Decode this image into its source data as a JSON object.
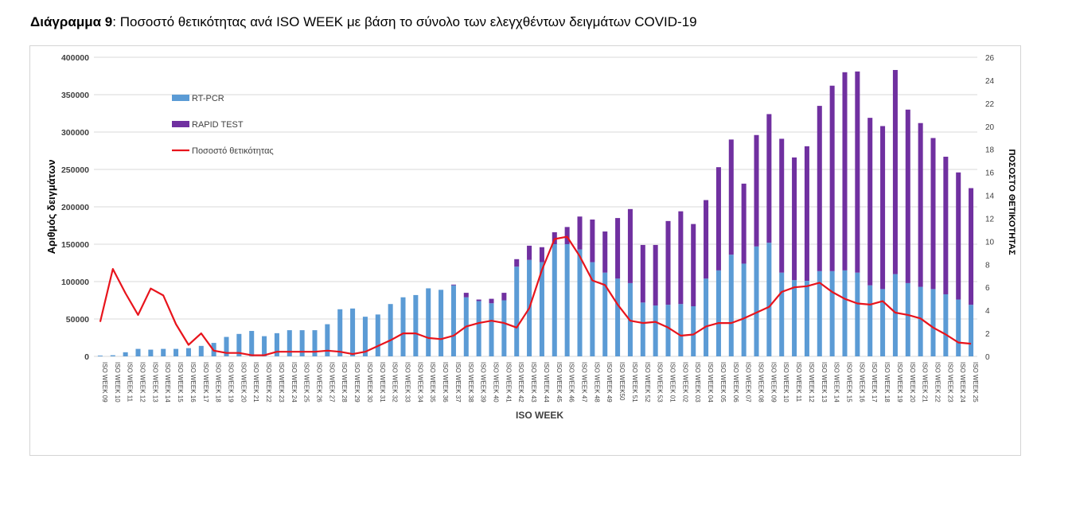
{
  "heading": {
    "lead": "Διάγραμμα 9",
    "sep": ":",
    "rest": " Ποσοστό θετικότητας ανά ISO WEEK με βάση το σύνολο των ελεγχθέντων δειγμάτων COVID-19"
  },
  "chart_data": {
    "type": "bar",
    "stacked": true,
    "title": "",
    "xlabel": "ISO WEEK",
    "ylabel": "Αριθμός δειγμάτων",
    "y2label": "ΠΟΣΟΣΤΟ ΘΕΤΙΚΟΤΗΤΑΣ",
    "ylim": [
      0,
      400000
    ],
    "y2lim": [
      0,
      26
    ],
    "yticks": [
      0,
      50000,
      100000,
      150000,
      200000,
      250000,
      300000,
      350000,
      400000
    ],
    "y2ticks": [
      0,
      2,
      4,
      6,
      8,
      10,
      12,
      14,
      16,
      18,
      20,
      22,
      24,
      26
    ],
    "grid": true,
    "legend_position": "top-left",
    "categories": [
      "ISO WEEK 09",
      "ISO WEEK 10",
      "ISO WEEK 11",
      "ISO WEEK 12",
      "ISO WEEK 13",
      "ISO WEEK 14",
      "ISO WEEK 15",
      "ISO WEEK 16",
      "ISO WEEK 17",
      "ISO WEEK 18",
      "ISO WEEK 19",
      "ISO WEEK 20",
      "ISO WEEK 21",
      "ISO WEEK 22",
      "ISO WEEK 23",
      "ISO WEEK 24",
      "ISO WEEK 25",
      "ISO WEEK 26",
      "ISO WEEK 27",
      "ISO WEEK 28",
      "ISO WEEK 29",
      "ISO WEEK 30",
      "ISO WEEK 31",
      "ISO WEEK 32",
      "ISO WEEK 33",
      "ISO WEEK 34",
      "ISO WEEK 35",
      "ISO WEEK 36",
      "ISO WEEK 37",
      "ISO WEEK 38",
      "ISO WEEK 39",
      "ISO WEEK 40",
      "ISO WEEK 41",
      "ISO WEEK 42",
      "ISO WEEK 43",
      "ISO WEEK 44",
      "ISO WEEK 45",
      "ISO WEEK 46",
      "ISO WEEK 47",
      "ISO WEEK 48",
      "ISO WEEK 49",
      "ISO WEEK50",
      "ISO WEEK 51",
      "ISO WEEK 52",
      "ISO WEEK 53",
      "ISO WEEK 01",
      "ISO WEEK 02",
      "ISO WEEK 03",
      "ISO WEEK 04",
      "ISO WEEK 05",
      "ISO WEEK 06",
      "ISO WEEK 07",
      "ISO WEEK 08",
      "ISO WEEK 09",
      "ISO WEEK 10",
      "ISO WEEK 11",
      "ISO WEEK 12",
      "ISO WEEK 13",
      "ISO WEEK 14",
      "ISO WEEK 15",
      "ISO WEEK 16",
      "ISO WEEK 17",
      "ISO WEEK 18",
      "ISO WEEK 19",
      "ISO WEEK 20",
      "ISO WEEK 21",
      "ISO WEEK 22",
      "ISO WEEK 23",
      "ISO WEEK 24",
      "ISO WEEK 25"
    ],
    "series": [
      {
        "name": "RT-PCR",
        "kind": "bar",
        "axis": "left",
        "color": "#5b9bd5",
        "values": [
          1000,
          1500,
          5500,
          10000,
          9000,
          10000,
          10000,
          11000,
          14000,
          18000,
          26000,
          30000,
          34000,
          27000,
          31000,
          35000,
          35000,
          35000,
          43000,
          63000,
          64000,
          53000,
          56000,
          70000,
          79000,
          82000,
          91000,
          89000,
          95000,
          79000,
          74000,
          71000,
          75000,
          120000,
          129000,
          126000,
          150000,
          150000,
          143000,
          126000,
          112000,
          104000,
          98000,
          72000,
          68000,
          69000,
          70000,
          67000,
          104000,
          115000,
          136000,
          124000,
          147000,
          152000,
          112000,
          102000,
          101000,
          114000,
          114000,
          115000,
          112000,
          95000,
          90000,
          110000,
          98000,
          93000,
          90000,
          83000,
          76000,
          69000
        ]
      },
      {
        "name": "RAPID TEST",
        "kind": "bar",
        "axis": "left",
        "color": "#7030a0",
        "values": [
          0,
          0,
          0,
          0,
          0,
          0,
          0,
          0,
          0,
          0,
          0,
          0,
          0,
          0,
          0,
          0,
          0,
          0,
          0,
          0,
          0,
          0,
          0,
          0,
          0,
          0,
          0,
          0,
          1000,
          6000,
          2000,
          6000,
          10000,
          10000,
          19000,
          20000,
          16000,
          23000,
          44000,
          57000,
          55000,
          81000,
          99000,
          77000,
          81000,
          112000,
          124000,
          110000,
          105000,
          138000,
          154000,
          107000,
          149000,
          172000,
          179000,
          164000,
          180000,
          221000,
          248000,
          265000,
          269000,
          224000,
          218000,
          273000,
          232000,
          219000,
          202000,
          184000,
          170000,
          156000
        ]
      },
      {
        "name": "Ποσοστό θετικότητας",
        "kind": "line",
        "axis": "right",
        "color": "#e8141c",
        "values": [
          3.0,
          7.6,
          5.5,
          3.6,
          5.9,
          5.3,
          2.8,
          1.0,
          2.0,
          0.5,
          0.3,
          0.3,
          0.1,
          0.1,
          0.4,
          0.4,
          0.4,
          0.4,
          0.5,
          0.4,
          0.2,
          0.4,
          0.9,
          1.4,
          2.0,
          2.0,
          1.6,
          1.5,
          1.8,
          2.6,
          2.9,
          3.1,
          2.9,
          2.5,
          4.2,
          7.5,
          10.2,
          10.4,
          8.7,
          6.6,
          6.2,
          4.5,
          3.1,
          2.9,
          3.0,
          2.5,
          1.8,
          1.9,
          2.6,
          2.9,
          2.9,
          3.3,
          3.8,
          4.3,
          5.6,
          6.0,
          6.1,
          6.4,
          5.6,
          5.0,
          4.6,
          4.5,
          4.8,
          3.8,
          3.6,
          3.3,
          2.5,
          1.9,
          1.2,
          1.1
        ]
      }
    ]
  }
}
